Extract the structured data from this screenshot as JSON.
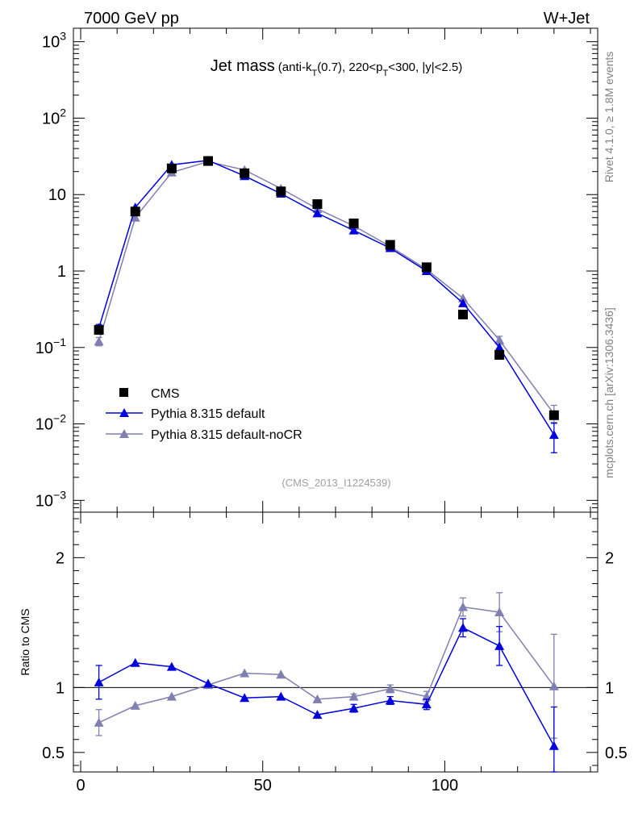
{
  "header": {
    "left": "7000 GeV pp",
    "right": "W+Jet"
  },
  "side_labels": {
    "rivet": "Rivet 4.1.0, ≥ 1.8M events",
    "mcplots": "mcplots.cern.ch [arXiv:1306.3436]"
  },
  "colors": {
    "cms": "#000000",
    "default": "#0000dd",
    "nocr": "#7f7fb0"
  },
  "chart_data": [
    {
      "type": "scatter+line",
      "title": "Jet mass",
      "subtitle": "(anti-k_T(0.7), 220<p_T<300, |y|<2.5)",
      "subtitle_parts": {
        "a": "(anti-k",
        "a_sub": "T",
        "b": "(0.7), 220<p",
        "b_sub": "T",
        "c": "<300, |y|<2.5)"
      },
      "watermark": "(CMS_2013_I1224539)",
      "yscale": "log",
      "ylim": [
        0.0007,
        1500
      ],
      "xlim": [
        -2,
        142
      ],
      "ytick_labels": [
        {
          "exp": 3,
          "base": "10",
          "sup": "3"
        },
        {
          "exp": 2,
          "base": "10",
          "sup": "2"
        },
        {
          "exp": 1,
          "base": "10",
          "sup": ""
        },
        {
          "exp": 0,
          "base": "1",
          "sup": ""
        },
        {
          "exp": -1,
          "base": "10",
          "sup": "−1"
        },
        {
          "exp": -2,
          "base": "10",
          "sup": "−2"
        },
        {
          "exp": -3,
          "base": "10",
          "sup": "−3"
        }
      ],
      "legend": [
        "CMS",
        "Pythia 8.315 default",
        "Pythia 8.315 default-noCR"
      ],
      "series": [
        {
          "name": "CMS",
          "style": "square",
          "x": [
            5,
            15,
            25,
            35,
            45,
            55,
            65,
            75,
            85,
            95,
            105,
            115,
            130
          ],
          "y": [
            0.17,
            6.0,
            22.0,
            27.5,
            19.0,
            11.0,
            7.5,
            4.2,
            2.2,
            1.12,
            0.27,
            0.08,
            0.013
          ]
        },
        {
          "name": "Pythia 8.315 default",
          "style": "triangle",
          "x": [
            5,
            15,
            25,
            35,
            45,
            55,
            65,
            75,
            85,
            95,
            105,
            115,
            130
          ],
          "y": [
            0.18,
            6.8,
            24.5,
            28.0,
            17.5,
            10.3,
            5.7,
            3.4,
            2.0,
            1.0,
            0.38,
            0.1,
            0.0072
          ],
          "err_lo": [
            0.02,
            0,
            0,
            0,
            0,
            0,
            0,
            0,
            0,
            0,
            0,
            0,
            0.003
          ],
          "err_hi": [
            0.02,
            0,
            0,
            0,
            0,
            0,
            0,
            0,
            0,
            0,
            0,
            0,
            0.003
          ]
        },
        {
          "name": "Pythia 8.315 default-noCR",
          "style": "triangle",
          "x": [
            5,
            15,
            25,
            35,
            45,
            55,
            65,
            75,
            85,
            95,
            105,
            115,
            130
          ],
          "y": [
            0.12,
            5.0,
            19.5,
            27.0,
            21.0,
            12.0,
            6.5,
            3.9,
            2.1,
            1.05,
            0.44,
            0.125,
            0.0135
          ],
          "err_lo": [
            0.015,
            0,
            0,
            0,
            0,
            0,
            0,
            0,
            0,
            0,
            0,
            0.015,
            0.003
          ],
          "err_hi": [
            0.015,
            0,
            0,
            0,
            0,
            0,
            0,
            0,
            0,
            0,
            0,
            0.015,
            0.004
          ]
        }
      ]
    },
    {
      "type": "line",
      "ylabel": "Ratio to CMS",
      "ylim": [
        0.35,
        2.35
      ],
      "xlim": [
        -2,
        142
      ],
      "yticks": [
        0.5,
        1,
        2
      ],
      "ytick_labels": [
        "0.5",
        "1",
        "2"
      ],
      "xticks": [
        0,
        50,
        100
      ],
      "xtick_labels": [
        "0",
        "50",
        "100"
      ],
      "reference_line": 1,
      "series": [
        {
          "name": "Pythia 8.315 default",
          "style": "triangle",
          "x": [
            5,
            15,
            25,
            35,
            45,
            55,
            65,
            75,
            85,
            95,
            105,
            115,
            130
          ],
          "y": [
            1.04,
            1.19,
            1.16,
            1.03,
            0.92,
            0.93,
            0.79,
            0.84,
            0.9,
            0.87,
            1.46,
            1.32,
            0.55
          ],
          "err": [
            0.13,
            0,
            0,
            0,
            0,
            0,
            0,
            0.03,
            0.03,
            0.04,
            0.07,
            0.15,
            0.3
          ]
        },
        {
          "name": "Pythia 8.315 default-noCR",
          "style": "triangle",
          "x": [
            5,
            15,
            25,
            35,
            45,
            55,
            65,
            75,
            85,
            95,
            105,
            115,
            130
          ],
          "y": [
            0.73,
            0.86,
            0.93,
            1.02,
            1.11,
            1.1,
            0.91,
            0.93,
            0.99,
            0.93,
            1.62,
            1.58,
            1.01
          ],
          "err": [
            0.1,
            0,
            0,
            0,
            0,
            0,
            0,
            0.02,
            0.03,
            0.04,
            0.07,
            0.15,
            0.4
          ]
        }
      ]
    }
  ]
}
